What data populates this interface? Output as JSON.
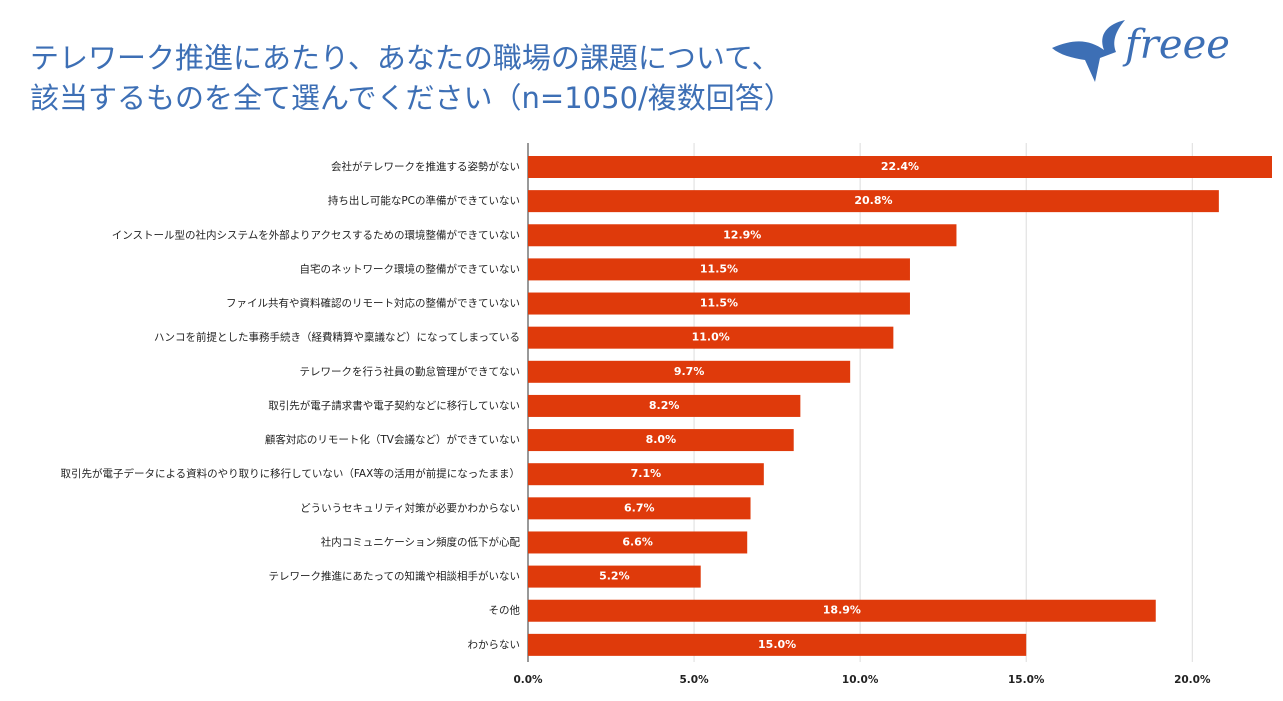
{
  "logo": "freee",
  "chart_data": {
    "type": "hbar",
    "title": [
      "テレワーク推進にあたり、あなたの職場の課題について、",
      "該当するものを全て選んでください（n=1050/複数回答）"
    ],
    "categories": [
      "会社がテレワークを推進する姿勢がない",
      "持ち出し可能なPCの準備ができていない",
      "インストール型の社内システムを外部よりアクセスするための環境整備ができていない",
      "自宅のネットワーク環境の整備ができていない",
      "ファイル共有や資料確認のリモート対応の整備ができていない",
      "ハンコを前提とした事務手続き（経費精算や稟議など）になってしまっている",
      "テレワークを行う社員の勤怠管理ができてない",
      "取引先が電子請求書や電子契約などに移行していない",
      "顧客対応のリモート化（TV会議など）ができていない",
      "取引先が電子データによる資料のやり取りに移行していない（FAX等の活用が前提になったまま）",
      "どういうセキュリティ対策が必要かわからない",
      "社内コミュニケーション頻度の低下が心配",
      "テレワーク推進にあたっての知識や相談相手がいない",
      "その他",
      "わからない"
    ],
    "values": [
      22.4,
      20.8,
      12.9,
      11.5,
      11.5,
      11.0,
      9.7,
      8.2,
      8.0,
      7.1,
      6.7,
      6.6,
      5.2,
      18.9,
      15.0
    ],
    "value_labels": [
      "22.4%",
      "20.8%",
      "12.9%",
      "11.5%",
      "11.5%",
      "11.0%",
      "9.7%",
      "8.2%",
      "8.0%",
      "7.1%",
      "6.7%",
      "6.6%",
      "5.2%",
      "18.9%",
      "15.0%"
    ],
    "color": "#df3a0b",
    "xlim": [
      0,
      22.4
    ],
    "xticks": [
      {
        "value": 0,
        "label": "0.0%"
      },
      {
        "value": 5,
        "label": "5.0%"
      },
      {
        "value": 10,
        "label": "10.0%"
      },
      {
        "value": 15,
        "label": "15.0%"
      },
      {
        "value": 20,
        "label": "20.0%"
      }
    ],
    "grid": true
  }
}
